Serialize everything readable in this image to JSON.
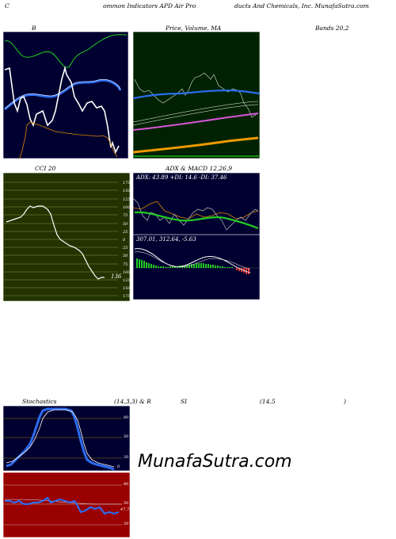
{
  "header": {
    "part1": "C",
    "part2": "ommon  Indicators APD Air Pro",
    "part3": "ducts And Chemicals, Inc. MunafaSutra.com"
  },
  "panels": {
    "bollinger": {
      "title": "B",
      "title_right": "Bands 20,2"
    },
    "price_ma": {
      "title": "Price,  Volume,  MA"
    },
    "cci": {
      "title": "CCI 20",
      "value": "136",
      "levels": [
        "175",
        "150",
        "125",
        "100",
        "75",
        "50",
        "25",
        "0",
        "25",
        "50",
        "75",
        "100",
        "125",
        "150",
        "175"
      ]
    },
    "adx": {
      "title": "ADX  & MACD 12,26,9",
      "info": "ADX: 43.89  +DI: 14.6  -DI: 37.46"
    },
    "macd": {
      "info": "307.01,  312.64,  -5.63"
    },
    "stochastics": {
      "title_a": "Stochastics",
      "title_b": "(14,3,3) & R",
      "title_c": "SI",
      "title_d": "(14,5",
      "title_e": ")",
      "levels": [
        "80",
        "50",
        "20"
      ],
      "value": "0"
    },
    "rsi": {
      "levels": [
        "80",
        "50",
        "20"
      ],
      "value": "47.73"
    }
  },
  "watermark": "MunafaSutra.com",
  "colors": {
    "navy": "#000030",
    "dark_green": "#002200",
    "olive": "#223300",
    "red_bg": "#990000"
  }
}
